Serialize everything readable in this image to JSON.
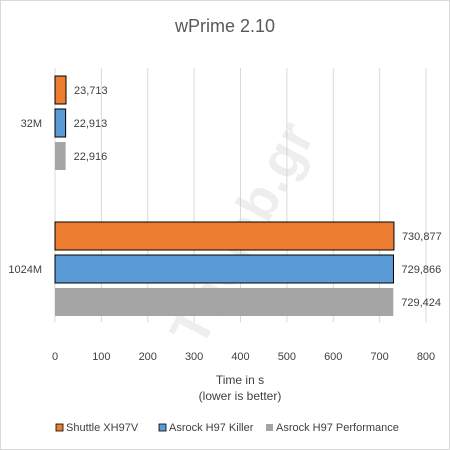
{
  "chart_data": {
    "type": "bar",
    "orientation": "horizontal",
    "title": "wPrime 2.10",
    "xlabel": [
      "Time in s",
      "(lower is better)"
    ],
    "ylabel": "",
    "xlim": [
      0,
      800
    ],
    "xticks": [
      0,
      100,
      200,
      300,
      400,
      500,
      600,
      700,
      800
    ],
    "categories": [
      "32M",
      "1024M"
    ],
    "series": [
      {
        "name": "Shuttle XH97V",
        "color": "#ED7D31",
        "values": [
          23.713,
          730.877
        ],
        "labels": [
          "23,713",
          "730,877"
        ]
      },
      {
        "name": "Asrock H97 Killer",
        "color": "#5B9BD5",
        "values": [
          22.913,
          729.866
        ],
        "labels": [
          "22,913",
          "729,866"
        ]
      },
      {
        "name": "Asrock H97 Performance",
        "color": "#A5A5A5",
        "values": [
          22.916,
          729.424
        ],
        "labels": [
          "22,916",
          "729,424"
        ]
      }
    ],
    "grid": true,
    "legend_position": "bottom"
  },
  "watermark": "Thelab.gr"
}
